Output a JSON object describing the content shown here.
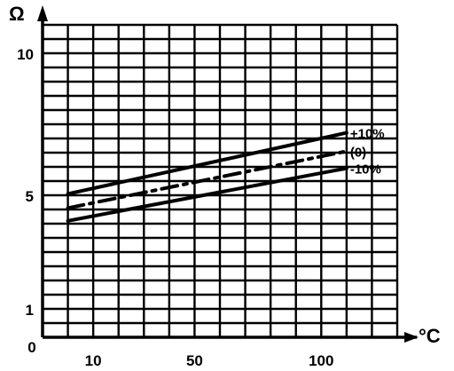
{
  "chart_data": {
    "type": "line",
    "x_unit": "°C",
    "y_unit": "Ω",
    "origin_label": "0",
    "xlim": [
      -10,
      130
    ],
    "ylim": [
      0,
      11
    ],
    "x_ticks": [
      {
        "value": 10,
        "label": "10"
      },
      {
        "value": 50,
        "label": "50"
      },
      {
        "value": 100,
        "label": "100"
      }
    ],
    "y_ticks": [
      {
        "value": 1,
        "label": "1"
      },
      {
        "value": 5,
        "label": "5"
      },
      {
        "value": 10,
        "label": "10"
      }
    ],
    "grid": true,
    "series": [
      {
        "name": "+10%",
        "label": "+10%",
        "style": "solid",
        "x": [
          0,
          110
        ],
        "y": [
          5.05,
          7.2
        ]
      },
      {
        "name": "(0)",
        "label": "(0)",
        "style": "dashdot",
        "x": [
          0,
          110
        ],
        "y": [
          4.55,
          6.55
        ]
      },
      {
        "name": "-10%",
        "label": "-10%",
        "style": "solid",
        "x": [
          0,
          110
        ],
        "y": [
          4.1,
          5.95
        ]
      }
    ]
  }
}
